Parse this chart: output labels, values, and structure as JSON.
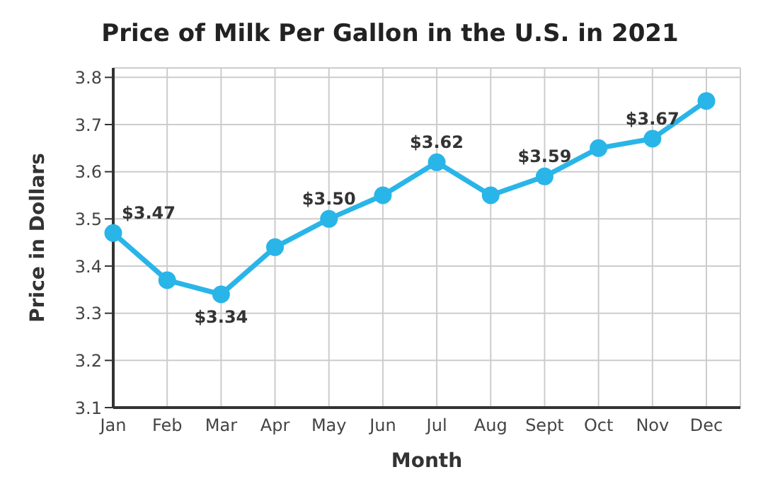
{
  "chart_data": {
    "type": "line",
    "title": "Price of Milk Per Gallon in the U.S. in 2021",
    "xlabel": "Month",
    "ylabel": "Price in Dollars",
    "categories": [
      "Jan",
      "Feb",
      "Mar",
      "Apr",
      "May",
      "Jun",
      "Jul",
      "Aug",
      "Sept",
      "Oct",
      "Nov",
      "Dec"
    ],
    "series": [
      {
        "color": "#29b5e8",
        "values": [
          3.47,
          3.37,
          3.34,
          3.44,
          3.5,
          3.55,
          3.62,
          3.55,
          3.59,
          3.65,
          3.67,
          3.75
        ],
        "value_labels": [
          "$3.47",
          null,
          "$3.34",
          null,
          "$3.50",
          null,
          "$3.62",
          null,
          "$3.59",
          null,
          "$3.67",
          null
        ]
      }
    ],
    "ylim": [
      3.1,
      3.82
    ],
    "yticks": [
      3.1,
      3.2,
      3.3,
      3.4,
      3.5,
      3.6,
      3.7,
      3.8
    ],
    "grid": true,
    "marker": "circle",
    "line_style": "solid",
    "legend": false
  }
}
